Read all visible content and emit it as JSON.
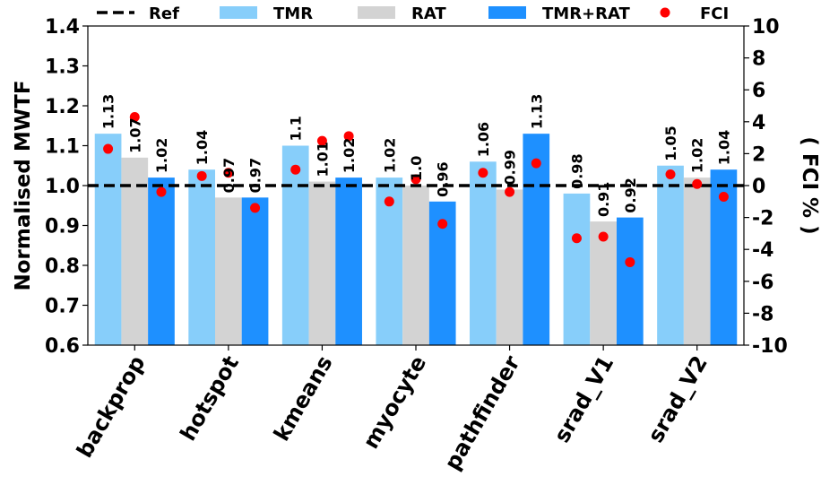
{
  "chart_data": {
    "type": "bar",
    "categories": [
      "backprop",
      "hotspot",
      "kmeans",
      "myocyte",
      "pathfinder",
      "srad_V1",
      "srad_V2"
    ],
    "series": [
      {
        "name": "TMR",
        "color": "#87cefa",
        "values": [
          1.13,
          1.04,
          1.1,
          1.02,
          1.06,
          0.98,
          1.05
        ],
        "labels": [
          "1.13",
          "1.04",
          "1.1",
          "1.02",
          "1.06",
          "0.98",
          "1.05"
        ]
      },
      {
        "name": "RAT",
        "color": "#d3d3d3",
        "values": [
          1.07,
          0.97,
          1.01,
          1.0,
          0.99,
          0.91,
          1.02
        ],
        "labels": [
          "1.07",
          "0.97",
          "1.01",
          "1.0",
          "0.99",
          "0.91",
          "1.02"
        ]
      },
      {
        "name": "TMR+RAT",
        "color": "#1e90ff",
        "values": [
          1.02,
          0.97,
          1.02,
          0.96,
          1.13,
          0.92,
          1.04
        ],
        "labels": [
          "1.02",
          "0.97",
          "1.02",
          "0.96",
          "1.13",
          "0.92",
          "1.04"
        ]
      }
    ],
    "fci_series": {
      "name": "FCI",
      "color": "#ff0000",
      "values": [
        [
          2.3,
          4.3,
          -0.4
        ],
        [
          0.6,
          0.8,
          -1.4
        ],
        [
          1.0,
          2.8,
          3.1
        ],
        [
          -1.0,
          0.4,
          -2.4
        ],
        [
          0.8,
          -0.4,
          1.4
        ],
        [
          -3.3,
          -3.2,
          -4.8
        ],
        [
          0.7,
          0.1,
          -0.7
        ]
      ]
    },
    "ref": {
      "name": "Ref",
      "value": 1.0
    },
    "ylabel": "Normalised MWTF",
    "y2label": "( FCI % )",
    "ylim": [
      0.6,
      1.4
    ],
    "y2lim": [
      -10,
      10
    ],
    "yticks": [
      "0.6",
      "0.7",
      "0.8",
      "0.9",
      "1.0",
      "1.1",
      "1.2",
      "1.3",
      "1.4"
    ],
    "y2ticks": [
      "-10",
      "-8",
      "-6",
      "-4",
      "-2",
      "0",
      "2",
      "4",
      "6",
      "8",
      "10"
    ],
    "legend": {
      "position": "top",
      "entries": [
        "Ref",
        "TMR",
        "RAT",
        "TMR+RAT",
        "FCI"
      ]
    },
    "grid": false
  }
}
